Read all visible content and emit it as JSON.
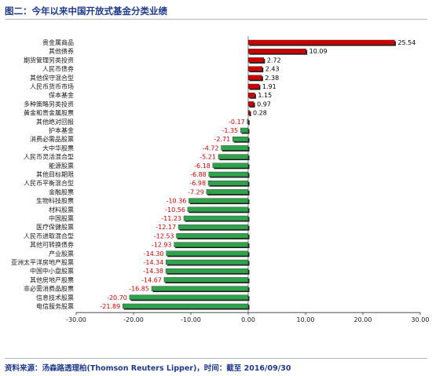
{
  "title": "图二：今年以来中国开放式基金分类业绩",
  "source": "资料来源：汤森路透理柏(Thomson Reuters Lipper)，时间：截至 2016/09/30",
  "colors": {
    "positive": "#cc0000",
    "negative": "#2ea34b",
    "label_positive": "#000000",
    "label_negative": "#cc0000"
  },
  "chart_data": {
    "type": "bar",
    "orientation": "horizontal",
    "title": "图二：今年以来中国开放式基金分类业绩",
    "xlabel": "",
    "ylabel": "",
    "xlim": [
      -30,
      30
    ],
    "xticks": [
      "-30.00",
      "-20.00",
      "-10.00",
      "0.00",
      "10.00",
      "20.00",
      "30.00"
    ],
    "grid": false,
    "categories": [
      "贵金属商品",
      "其他债券",
      "期货管理另类投资",
      "人民币债券",
      "其他保守混合型",
      "人民币货币市场",
      "保本基金",
      "多种策略另类投资",
      "黄金和贵金属股票",
      "其他绝对回报",
      "护本基金",
      "消费必需品股票",
      "大中华股票",
      "人民币灵活混合型",
      "能源股票",
      "其他目标期限",
      "人民币平衡混合型",
      "金融股票",
      "生物科技股票",
      "材料股票",
      "中国股票",
      "医疗保健股票",
      "人民币进取混合型",
      "其他可转换债券",
      "产业股票",
      "亚洲太平洋房地产股票",
      "中国中小盘股票",
      "其他房地产股票",
      "非必需消费品股票",
      "信息技术股票",
      "电信服务股票"
    ],
    "values": [
      25.54,
      10.09,
      2.72,
      2.43,
      2.38,
      1.91,
      1.15,
      0.97,
      0.28,
      -0.17,
      -1.35,
      -2.71,
      -4.72,
      -5.21,
      -6.18,
      -6.88,
      -6.98,
      -7.29,
      -10.36,
      -10.56,
      -11.23,
      -12.17,
      -12.53,
      -12.93,
      -14.3,
      -14.34,
      -14.38,
      -14.67,
      -16.85,
      -20.7,
      -21.89
    ],
    "labels": [
      "25.54",
      "10.09",
      "2.72",
      "2.43",
      "2.38",
      "1.91",
      "1.15",
      "0.97",
      "0.28",
      "-0.17",
      "-1.35",
      "-2.71",
      "-4.72",
      "-5.21",
      "-6.18",
      "-6.88",
      "-6.98",
      "-7.29",
      "-10.36",
      "-10.56",
      "-11.23",
      "-12.17",
      "-12.53",
      "-12.93",
      "-14.30",
      "-14.34",
      "-14.38",
      "-14.67",
      "-16.85",
      "-20.70",
      "-21.89"
    ]
  }
}
